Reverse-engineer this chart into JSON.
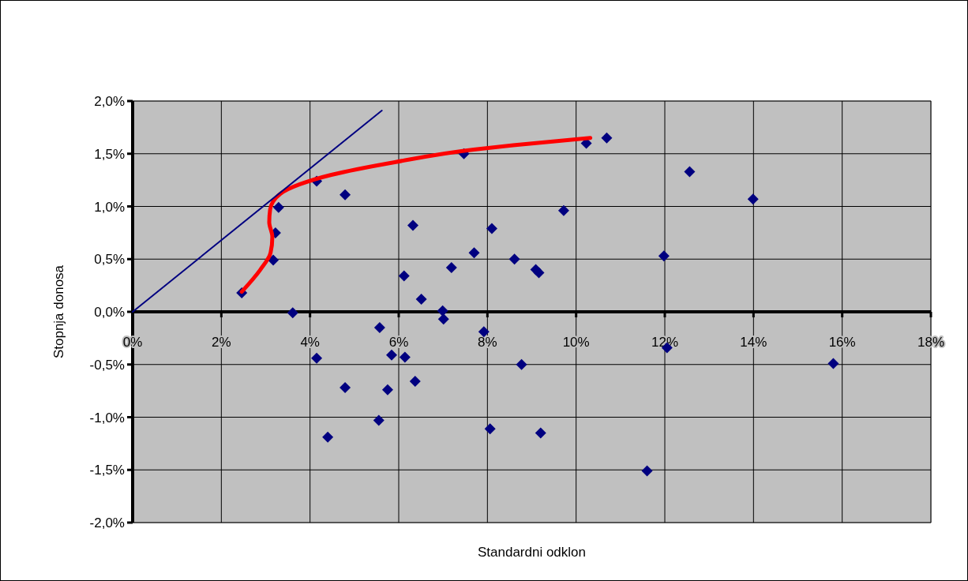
{
  "chart_data": {
    "type": "scatter",
    "xlabel": "Standardni odklon",
    "ylabel": "Stopnja donosa",
    "xlim": [
      0,
      18
    ],
    "ylim": [
      -2,
      2
    ],
    "xticks": [
      {
        "value": 0,
        "label": "0%"
      },
      {
        "value": 2,
        "label": "2%"
      },
      {
        "value": 4,
        "label": "4%"
      },
      {
        "value": 6,
        "label": "6%"
      },
      {
        "value": 8,
        "label": "8%"
      },
      {
        "value": 10,
        "label": "10%"
      },
      {
        "value": 12,
        "label": "12%"
      },
      {
        "value": 14,
        "label": "14%"
      },
      {
        "value": 16,
        "label": "16%"
      },
      {
        "value": 18,
        "label": "18%"
      }
    ],
    "yticks": [
      {
        "value": -2,
        "label": "-2,0%"
      },
      {
        "value": -1.5,
        "label": "-1,5%"
      },
      {
        "value": -1,
        "label": "-1,0%"
      },
      {
        "value": -0.5,
        "label": "-0,5%"
      },
      {
        "value": 0,
        "label": "0,0%"
      },
      {
        "value": 0.5,
        "label": "0,5%"
      },
      {
        "value": 1,
        "label": "1,0%"
      },
      {
        "value": 1.5,
        "label": "1,5%"
      },
      {
        "value": 2,
        "label": "2,0%"
      }
    ],
    "grid": true,
    "marker": "diamond",
    "series": [
      {
        "color": "#000080",
        "x": [
          2.46,
          3.29,
          3.22,
          3.17,
          3.61,
          4.15,
          4.79,
          4.15,
          4.79,
          4.4,
          5.55,
          5.57,
          5.84,
          5.75,
          6.14,
          6.37,
          6.12,
          6.32,
          6.51,
          6.99,
          7.01,
          7.19,
          7.47,
          7.7,
          7.92,
          8.1,
          8.06,
          8.61,
          8.77,
          9.09,
          9.16,
          9.2,
          9.72,
          10.23,
          10.69,
          11.6,
          11.98,
          12.05,
          12.56,
          13.99,
          15.8
        ],
        "values": [
          0.18,
          0.99,
          0.75,
          0.49,
          -0.01,
          1.24,
          1.11,
          -0.44,
          -0.72,
          -1.19,
          -1.03,
          -0.15,
          -0.41,
          -0.74,
          -0.43,
          -0.66,
          0.34,
          0.82,
          0.12,
          0.01,
          -0.07,
          0.42,
          1.5,
          0.56,
          -0.19,
          0.79,
          -1.11,
          0.5,
          -0.5,
          0.4,
          0.37,
          -1.15,
          0.96,
          1.6,
          1.65,
          -1.51,
          0.53,
          -0.34,
          1.33,
          1.07,
          -0.49
        ]
      },
      {
        "type": "line",
        "color": "#ff0000",
        "marker": "none",
        "x": [
          2.46,
          2.88,
          3.11,
          3.15,
          3.08,
          3.1,
          3.33,
          3.77,
          4.48,
          5.91,
          7.69,
          8.58,
          10.32
        ],
        "values": [
          0.19,
          0.4,
          0.56,
          0.71,
          0.85,
          0.97,
          1.12,
          1.21,
          1.3,
          1.42,
          1.54,
          1.58,
          1.65
        ]
      },
      {
        "type": "line",
        "color": "#000080",
        "marker": "none",
        "x": [
          0,
          5.62
        ],
        "values": [
          0,
          1.91
        ]
      }
    ]
  }
}
